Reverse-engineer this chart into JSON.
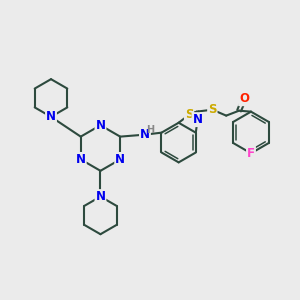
{
  "background_color": "#ebebeb",
  "bond_color": "#2d4a3e",
  "bond_width": 1.5,
  "atom_colors": {
    "N": "#0000ee",
    "S": "#ccaa00",
    "O": "#ff2200",
    "F": "#ff44cc",
    "C": "#2d4a3e",
    "H": "#888888"
  },
  "font_size_atom": 8.5,
  "font_size_small": 7.0
}
